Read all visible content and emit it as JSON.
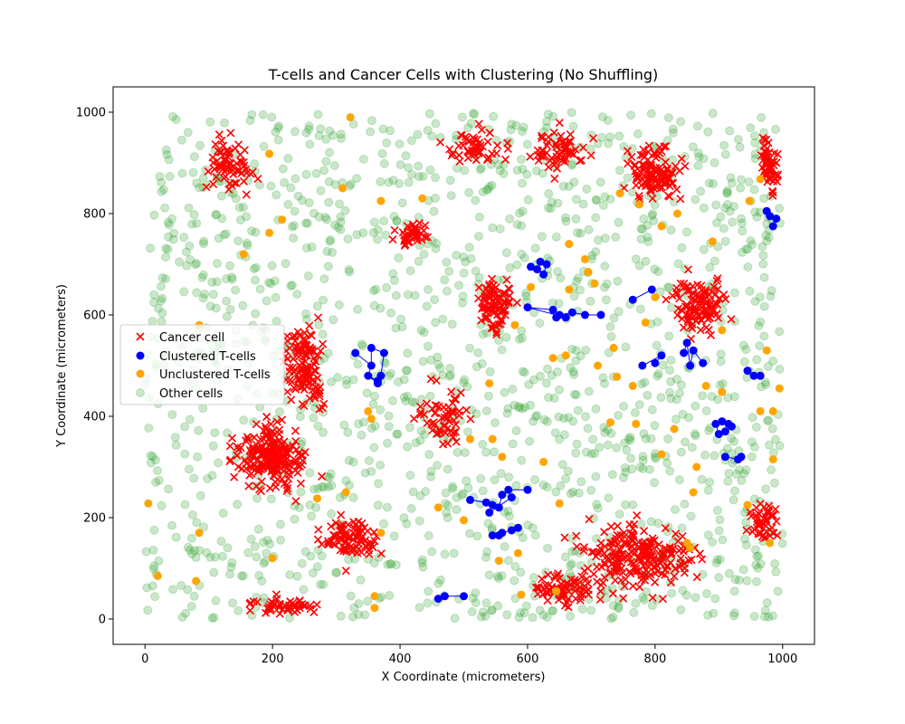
{
  "chart_data": {
    "type": "scatter",
    "title": "T-cells and Cancer Cells with Clustering (No Shuffling)",
    "xlabel": "X Coordinate (micrometers)",
    "ylabel": "Y Coordinate (micrometers)",
    "xlim": [
      -50,
      1050
    ],
    "ylim": [
      -50,
      1050
    ],
    "x_ticks": [
      0,
      200,
      400,
      600,
      800,
      1000
    ],
    "y_ticks": [
      0,
      200,
      400,
      600,
      800,
      1000
    ],
    "grid": false,
    "legend_position": "center-left",
    "series": [
      {
        "name": "Cancer cell",
        "marker": "x",
        "color": "#ff0000",
        "regions": [
          {
            "cx": 130,
            "cy": 900,
            "rx": 60,
            "ry": 80,
            "n": 70
          },
          {
            "cx": 250,
            "cy": 500,
            "rx": 50,
            "ry": 120,
            "n": 120
          },
          {
            "cx": 200,
            "cy": 320,
            "rx": 80,
            "ry": 90,
            "n": 220
          },
          {
            "cx": 320,
            "cy": 160,
            "rx": 70,
            "ry": 70,
            "n": 90
          },
          {
            "cx": 220,
            "cy": 25,
            "rx": 80,
            "ry": 25,
            "n": 50
          },
          {
            "cx": 420,
            "cy": 760,
            "rx": 50,
            "ry": 40,
            "n": 40
          },
          {
            "cx": 470,
            "cy": 400,
            "rx": 60,
            "ry": 90,
            "n": 60
          },
          {
            "cx": 550,
            "cy": 620,
            "rx": 50,
            "ry": 90,
            "n": 80
          },
          {
            "cx": 520,
            "cy": 930,
            "rx": 70,
            "ry": 60,
            "n": 50
          },
          {
            "cx": 650,
            "cy": 920,
            "rx": 70,
            "ry": 60,
            "n": 60
          },
          {
            "cx": 800,
            "cy": 880,
            "rx": 60,
            "ry": 80,
            "n": 110
          },
          {
            "cx": 870,
            "cy": 620,
            "rx": 70,
            "ry": 80,
            "n": 110
          },
          {
            "cx": 980,
            "cy": 900,
            "rx": 30,
            "ry": 90,
            "n": 50
          },
          {
            "cx": 780,
            "cy": 120,
            "rx": 140,
            "ry": 100,
            "n": 220
          },
          {
            "cx": 660,
            "cy": 60,
            "rx": 80,
            "ry": 50,
            "n": 70
          },
          {
            "cx": 970,
            "cy": 190,
            "rx": 40,
            "ry": 60,
            "n": 50
          }
        ]
      },
      {
        "name": "Clustered T-cells",
        "marker": "o",
        "color": "#0000ff",
        "clusters": [
          {
            "x": 330,
            "y": 525
          },
          {
            "x": 355,
            "y": 500
          },
          {
            "x": 350,
            "y": 480
          },
          {
            "x": 365,
            "y": 470
          },
          {
            "x": 370,
            "y": 480
          },
          {
            "x": 375,
            "y": 525
          },
          {
            "x": 355,
            "y": 535
          },
          {
            "x": 365,
            "y": 465
          },
          {
            "x": 605,
            "y": 695
          },
          {
            "x": 615,
            "y": 690
          },
          {
            "x": 625,
            "y": 680
          },
          {
            "x": 630,
            "y": 700
          },
          {
            "x": 620,
            "y": 705
          },
          {
            "x": 600,
            "y": 615
          },
          {
            "x": 640,
            "y": 610
          },
          {
            "x": 650,
            "y": 600
          },
          {
            "x": 670,
            "y": 605
          },
          {
            "x": 690,
            "y": 600
          },
          {
            "x": 715,
            "y": 600
          },
          {
            "x": 660,
            "y": 595
          },
          {
            "x": 645,
            "y": 595
          },
          {
            "x": 765,
            "y": 630
          },
          {
            "x": 795,
            "y": 650
          },
          {
            "x": 780,
            "y": 500
          },
          {
            "x": 810,
            "y": 520
          },
          {
            "x": 800,
            "y": 505
          },
          {
            "x": 845,
            "y": 525
          },
          {
            "x": 850,
            "y": 545
          },
          {
            "x": 855,
            "y": 500
          },
          {
            "x": 860,
            "y": 530
          },
          {
            "x": 875,
            "y": 505
          },
          {
            "x": 975,
            "y": 805
          },
          {
            "x": 990,
            "y": 790
          },
          {
            "x": 985,
            "y": 775
          },
          {
            "x": 980,
            "y": 795
          },
          {
            "x": 945,
            "y": 490
          },
          {
            "x": 955,
            "y": 480
          },
          {
            "x": 965,
            "y": 480
          },
          {
            "x": 895,
            "y": 385
          },
          {
            "x": 905,
            "y": 390
          },
          {
            "x": 915,
            "y": 385
          },
          {
            "x": 920,
            "y": 380
          },
          {
            "x": 900,
            "y": 365
          },
          {
            "x": 910,
            "y": 370
          },
          {
            "x": 910,
            "y": 320
          },
          {
            "x": 930,
            "y": 315
          },
          {
            "x": 935,
            "y": 320
          },
          {
            "x": 510,
            "y": 235
          },
          {
            "x": 535,
            "y": 230
          },
          {
            "x": 545,
            "y": 225
          },
          {
            "x": 555,
            "y": 220
          },
          {
            "x": 560,
            "y": 245
          },
          {
            "x": 570,
            "y": 255
          },
          {
            "x": 600,
            "y": 255
          },
          {
            "x": 540,
            "y": 210
          },
          {
            "x": 575,
            "y": 240
          },
          {
            "x": 545,
            "y": 165
          },
          {
            "x": 560,
            "y": 170
          },
          {
            "x": 575,
            "y": 175
          },
          {
            "x": 585,
            "y": 180
          },
          {
            "x": 555,
            "y": 165
          },
          {
            "x": 460,
            "y": 40
          },
          {
            "x": 470,
            "y": 45
          },
          {
            "x": 500,
            "y": 45
          }
        ],
        "links": [
          [
            0,
            1
          ],
          [
            1,
            2
          ],
          [
            2,
            3
          ],
          [
            3,
            4
          ],
          [
            4,
            5
          ],
          [
            5,
            6
          ],
          [
            6,
            1
          ],
          [
            2,
            7
          ],
          [
            8,
            9
          ],
          [
            9,
            10
          ],
          [
            10,
            11
          ],
          [
            11,
            12
          ],
          [
            13,
            14
          ],
          [
            14,
            15
          ],
          [
            15,
            16
          ],
          [
            16,
            17
          ],
          [
            17,
            18
          ],
          [
            13,
            19
          ],
          [
            19,
            20
          ],
          [
            21,
            22
          ],
          [
            23,
            24
          ],
          [
            24,
            25
          ],
          [
            26,
            27
          ],
          [
            27,
            28
          ],
          [
            28,
            29
          ],
          [
            29,
            30
          ],
          [
            31,
            32
          ],
          [
            32,
            33
          ],
          [
            31,
            34
          ],
          [
            35,
            36
          ],
          [
            36,
            37
          ],
          [
            38,
            39
          ],
          [
            39,
            40
          ],
          [
            40,
            41
          ],
          [
            38,
            42
          ],
          [
            42,
            43
          ],
          [
            44,
            45
          ],
          [
            45,
            46
          ],
          [
            47,
            48
          ],
          [
            48,
            49
          ],
          [
            49,
            50
          ],
          [
            50,
            51
          ],
          [
            51,
            52
          ],
          [
            52,
            53
          ],
          [
            49,
            54
          ],
          [
            54,
            55
          ],
          [
            56,
            57
          ],
          [
            57,
            58
          ],
          [
            58,
            59
          ],
          [
            56,
            60
          ],
          [
            61,
            62
          ],
          [
            62,
            63
          ]
        ]
      },
      {
        "name": "Unclustered T-cells",
        "marker": "o",
        "color": "#ffa500",
        "points": [
          {
            "x": 322,
            "y": 990
          },
          {
            "x": 195,
            "y": 918
          },
          {
            "x": 310,
            "y": 850
          },
          {
            "x": 370,
            "y": 825
          },
          {
            "x": 435,
            "y": 830
          },
          {
            "x": 215,
            "y": 788
          },
          {
            "x": 195,
            "y": 762
          },
          {
            "x": 155,
            "y": 720
          },
          {
            "x": 85,
            "y": 580
          },
          {
            "x": 350,
            "y": 410
          },
          {
            "x": 355,
            "y": 395
          },
          {
            "x": 540,
            "y": 465
          },
          {
            "x": 580,
            "y": 580
          },
          {
            "x": 605,
            "y": 655
          },
          {
            "x": 665,
            "y": 740
          },
          {
            "x": 665,
            "y": 650
          },
          {
            "x": 705,
            "y": 662
          },
          {
            "x": 690,
            "y": 710
          },
          {
            "x": 745,
            "y": 840
          },
          {
            "x": 775,
            "y": 818
          },
          {
            "x": 810,
            "y": 775
          },
          {
            "x": 835,
            "y": 800
          },
          {
            "x": 890,
            "y": 745
          },
          {
            "x": 948,
            "y": 825
          },
          {
            "x": 965,
            "y": 868
          },
          {
            "x": 905,
            "y": 570
          },
          {
            "x": 975,
            "y": 530
          },
          {
            "x": 695,
            "y": 685
          },
          {
            "x": 735,
            "y": 535
          },
          {
            "x": 740,
            "y": 478
          },
          {
            "x": 765,
            "y": 460
          },
          {
            "x": 785,
            "y": 585
          },
          {
            "x": 800,
            "y": 635
          },
          {
            "x": 710,
            "y": 500
          },
          {
            "x": 640,
            "y": 515
          },
          {
            "x": 660,
            "y": 520
          },
          {
            "x": 830,
            "y": 375
          },
          {
            "x": 880,
            "y": 460
          },
          {
            "x": 905,
            "y": 448
          },
          {
            "x": 995,
            "y": 455
          },
          {
            "x": 985,
            "y": 410
          },
          {
            "x": 965,
            "y": 410
          },
          {
            "x": 730,
            "y": 388
          },
          {
            "x": 770,
            "y": 385
          },
          {
            "x": 810,
            "y": 325
          },
          {
            "x": 865,
            "y": 300
          },
          {
            "x": 985,
            "y": 315
          },
          {
            "x": 945,
            "y": 225
          },
          {
            "x": 860,
            "y": 250
          },
          {
            "x": 850,
            "y": 150
          },
          {
            "x": 855,
            "y": 140
          },
          {
            "x": 980,
            "y": 150
          },
          {
            "x": 625,
            "y": 310
          },
          {
            "x": 650,
            "y": 228
          },
          {
            "x": 560,
            "y": 320
          },
          {
            "x": 545,
            "y": 355
          },
          {
            "x": 510,
            "y": 355
          },
          {
            "x": 500,
            "y": 195
          },
          {
            "x": 460,
            "y": 220
          },
          {
            "x": 585,
            "y": 130
          },
          {
            "x": 555,
            "y": 115
          },
          {
            "x": 590,
            "y": 48
          },
          {
            "x": 645,
            "y": 55
          },
          {
            "x": 370,
            "y": 170
          },
          {
            "x": 315,
            "y": 250
          },
          {
            "x": 270,
            "y": 238
          },
          {
            "x": 360,
            "y": 45
          },
          {
            "x": 360,
            "y": 22
          },
          {
            "x": 200,
            "y": 120
          },
          {
            "x": 85,
            "y": 170
          },
          {
            "x": 80,
            "y": 75
          },
          {
            "x": 20,
            "y": 85
          },
          {
            "x": 5,
            "y": 228
          }
        ]
      },
      {
        "name": "Other cells",
        "marker": "o",
        "color": "#2ca02c",
        "alpha": 0.25,
        "count": 1500,
        "x_range": [
          0,
          1000
        ],
        "y_range": [
          0,
          1000
        ]
      }
    ]
  }
}
